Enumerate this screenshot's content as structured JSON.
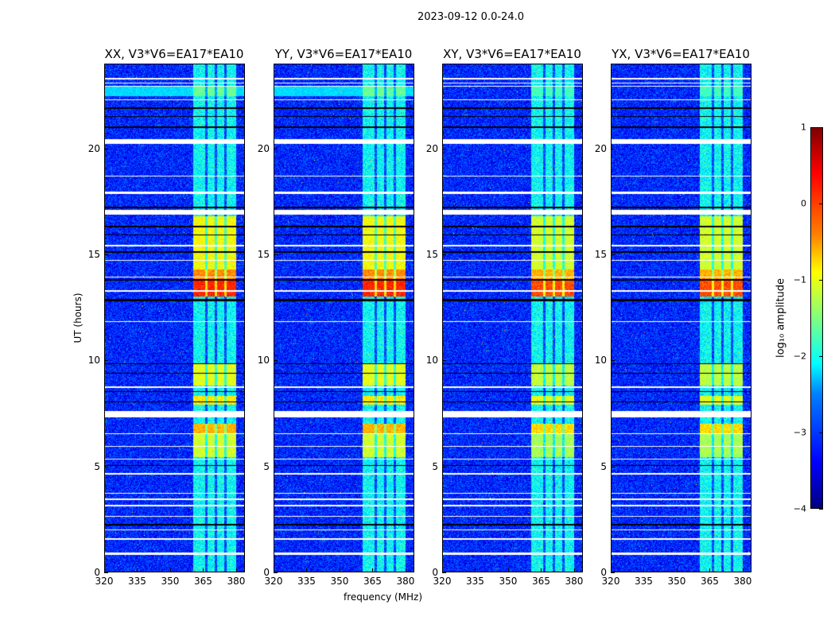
{
  "chart_data": {
    "type": "heatmap",
    "title": "2023-09-12 0.0-24.0",
    "xlabel": "frequency (MHz)",
    "ylabel": "UT (hours)",
    "xlim": [
      320,
      384
    ],
    "ylim": [
      0,
      24
    ],
    "xticks": [
      320,
      335,
      350,
      365,
      380
    ],
    "yticks": [
      0,
      5,
      10,
      15,
      20
    ],
    "panels": [
      {
        "title": "XX, V3*V6=EA17*EA10",
        "cross": false
      },
      {
        "title": "YY, V3*V6=EA17*EA10",
        "cross": false
      },
      {
        "title": "XY, V3*V6=EA17*EA10",
        "cross": true
      },
      {
        "title": "YX, V3*V6=EA17*EA10",
        "cross": true
      }
    ],
    "colorbar": {
      "label": "log₁₀ amplitude",
      "colormap": "jet",
      "range": [
        -4,
        1
      ],
      "ticks": [
        "1",
        "0",
        "−1",
        "−2",
        "−3",
        "−4"
      ]
    },
    "background_level": -3.2,
    "rfi_band_mhz": [
      360.5,
      380.5
    ],
    "rfi_band_level": -2.1,
    "subband_edges_mhz": [
      366.5,
      371,
      375.5
    ],
    "bursts": [
      {
        "ut": [
          5.4,
          6.5
        ],
        "level": -1.1
      },
      {
        "ut": [
          6.5,
          7.0
        ],
        "level": -0.5
      },
      {
        "ut": [
          7.9,
          8.3
        ],
        "level": -0.8
      },
      {
        "ut": [
          8.8,
          9.8
        ],
        "level": -1.0
      },
      {
        "ut": [
          13.0,
          13.8
        ],
        "level": 0.2
      },
      {
        "ut": [
          13.8,
          14.3
        ],
        "level": -0.3
      },
      {
        "ut": [
          14.3,
          16.8
        ],
        "level": -0.9
      },
      {
        "ut": [
          22.5,
          23.0
        ],
        "level": -1.6
      }
    ],
    "flagged_ut_white": [
      [
        23.3,
        23.35
      ],
      [
        23.1,
        23.15
      ],
      [
        22.95,
        23.0
      ],
      [
        22.3,
        22.35
      ],
      [
        20.25,
        20.45
      ],
      [
        18.7,
        18.75
      ],
      [
        17.85,
        18.0
      ],
      [
        16.9,
        17.1
      ],
      [
        15.4,
        15.45
      ],
      [
        14.7,
        14.75
      ],
      [
        13.9,
        13.95
      ],
      [
        13.25,
        13.3
      ],
      [
        11.8,
        11.85
      ],
      [
        8.7,
        8.75
      ],
      [
        7.3,
        7.6
      ],
      [
        6.5,
        6.55
      ],
      [
        5.9,
        5.95
      ],
      [
        5.3,
        5.35
      ],
      [
        4.6,
        4.65
      ],
      [
        3.7,
        3.72
      ],
      [
        3.4,
        3.45
      ],
      [
        3.1,
        3.15
      ],
      [
        2.6,
        2.65
      ],
      [
        1.95,
        2.0
      ],
      [
        1.5,
        1.58
      ],
      [
        0.8,
        0.9
      ]
    ],
    "flagged_ut_black": [
      [
        21.9,
        21.95
      ],
      [
        21.5,
        21.55
      ],
      [
        21.0,
        21.05
      ],
      [
        17.2,
        17.25
      ],
      [
        16.3,
        16.35
      ],
      [
        15.9,
        15.95
      ],
      [
        15.1,
        15.15
      ],
      [
        13.75,
        13.85
      ],
      [
        12.8,
        12.9
      ],
      [
        9.8,
        9.85
      ],
      [
        9.35,
        9.4
      ],
      [
        8.5,
        8.55
      ],
      [
        8.0,
        8.05
      ],
      [
        5.0,
        5.05
      ],
      [
        2.2,
        2.25
      ]
    ],
    "broadband_cyan_ut": [
      22.5,
      23.0
    ]
  }
}
